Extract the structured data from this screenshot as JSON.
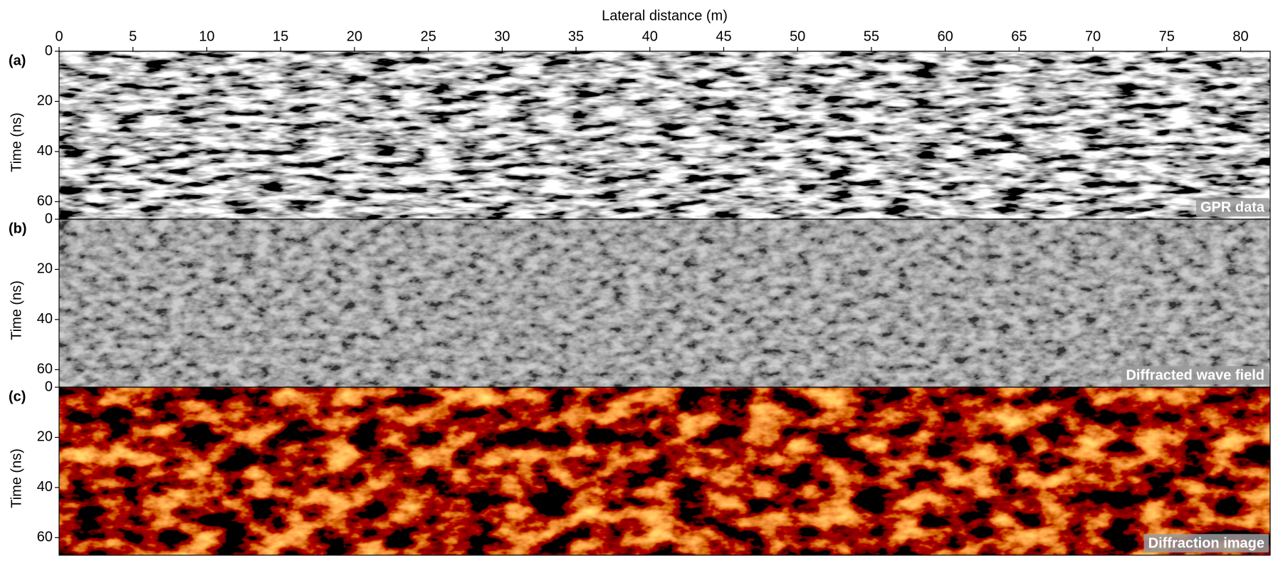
{
  "chart_data": [
    {
      "type": "image",
      "title": "Lateral distance (m)",
      "panel_label": "(a)",
      "ylabel": "Time (ns)",
      "annotation": "GPR data",
      "xlim": [
        0,
        82
      ],
      "xticks": [
        0,
        5,
        10,
        15,
        20,
        25,
        30,
        35,
        40,
        45,
        50,
        55,
        60,
        65,
        70,
        75,
        80
      ],
      "ylim": [
        0,
        67
      ],
      "yticks": [
        0,
        20,
        40,
        60
      ],
      "colormap": "gray"
    },
    {
      "type": "image",
      "panel_label": "(b)",
      "ylabel": "Time (ns)",
      "annotation": "Diffracted wave field",
      "ylim": [
        0,
        67
      ],
      "yticks": [
        0,
        20,
        40,
        60
      ],
      "colormap": "gray"
    },
    {
      "type": "image",
      "panel_label": "(c)",
      "ylabel": "Time (ns)",
      "annotation": "Diffraction image",
      "ylim": [
        0,
        67
      ],
      "yticks": [
        0,
        20,
        40,
        60
      ],
      "colormap": "heat"
    }
  ]
}
